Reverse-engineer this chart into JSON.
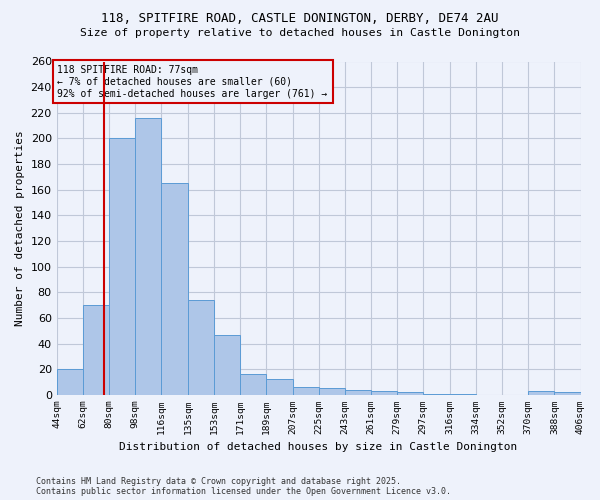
{
  "title": "118, SPITFIRE ROAD, CASTLE DONINGTON, DERBY, DE74 2AU",
  "subtitle": "Size of property relative to detached houses in Castle Donington",
  "xlabel": "Distribution of detached houses by size in Castle Donington",
  "ylabel": "Number of detached properties",
  "footer_line1": "Contains HM Land Registry data © Crown copyright and database right 2025.",
  "footer_line2": "Contains public sector information licensed under the Open Government Licence v3.0.",
  "annotation_title": "118 SPITFIRE ROAD: 77sqm",
  "annotation_line2": "← 7% of detached houses are smaller (60)",
  "annotation_line3": "92% of semi-detached houses are larger (761) →",
  "subject_size": 77,
  "bar_edges": [
    44,
    62,
    80,
    98,
    116,
    135,
    153,
    171,
    189,
    207,
    225,
    243,
    261,
    279,
    297,
    316,
    334,
    352,
    370,
    388,
    406
  ],
  "bar_heights": [
    20,
    70,
    200,
    216,
    165,
    74,
    47,
    16,
    12,
    6,
    5,
    4,
    3,
    2,
    1,
    1,
    0,
    0,
    3,
    2
  ],
  "bar_color": "#aec6e8",
  "bar_edge_color": "#5b9bd5",
  "red_line_color": "#cc0000",
  "bg_color": "#eef2fb",
  "annotation_box_color": "#cc0000",
  "grid_color": "#c0c8d8",
  "ylim": [
    0,
    260
  ],
  "yticks": [
    0,
    20,
    40,
    60,
    80,
    100,
    120,
    140,
    160,
    180,
    200,
    220,
    240,
    260
  ],
  "tick_labels": [
    "44sqm",
    "62sqm",
    "80sqm",
    "98sqm",
    "116sqm",
    "135sqm",
    "153sqm",
    "171sqm",
    "189sqm",
    "207sqm",
    "225sqm",
    "243sqm",
    "261sqm",
    "279sqm",
    "297sqm",
    "316sqm",
    "334sqm",
    "352sqm",
    "370sqm",
    "388sqm",
    "406sqm"
  ]
}
